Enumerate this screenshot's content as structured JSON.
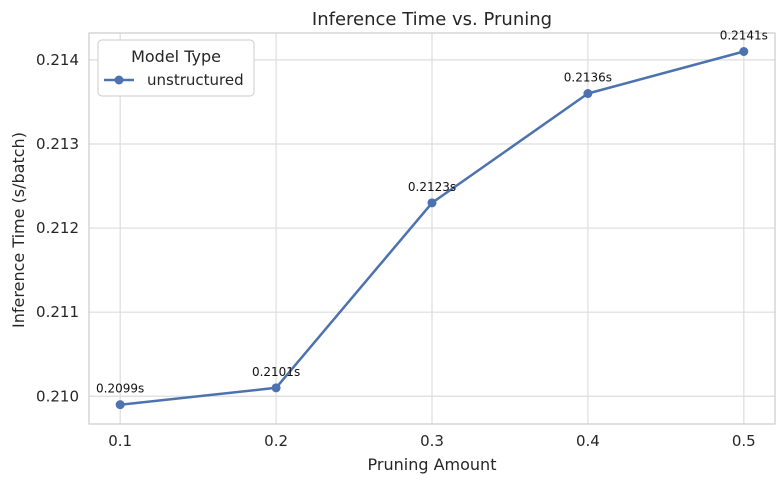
{
  "chart_data": {
    "type": "line",
    "title": "Inference Time vs. Pruning",
    "xlabel": "Pruning Amount",
    "ylabel": "Inference Time (s/batch)",
    "x": [
      0.1,
      0.2,
      0.3,
      0.4,
      0.5
    ],
    "x_tick_labels": [
      "0.1",
      "0.2",
      "0.3",
      "0.4",
      "0.5"
    ],
    "y_tick_values": [
      0.21,
      0.211,
      0.212,
      0.213,
      0.214
    ],
    "y_tick_labels": [
      "0.210",
      "0.211",
      "0.212",
      "0.213",
      "0.214"
    ],
    "xlim": [
      0.08,
      0.52
    ],
    "ylim": [
      0.20967,
      0.21432
    ],
    "grid": true,
    "legend": {
      "title": "Model Type",
      "placement": "upper-left"
    },
    "series": [
      {
        "name": "unstructured",
        "color": "#4c72b0",
        "marker": "circle",
        "values": [
          0.2099,
          0.2101,
          0.2123,
          0.2136,
          0.2141
        ],
        "data_labels": [
          "0.2099s",
          "0.2101s",
          "0.2123s",
          "0.2136s",
          "0.2141s"
        ]
      }
    ]
  }
}
